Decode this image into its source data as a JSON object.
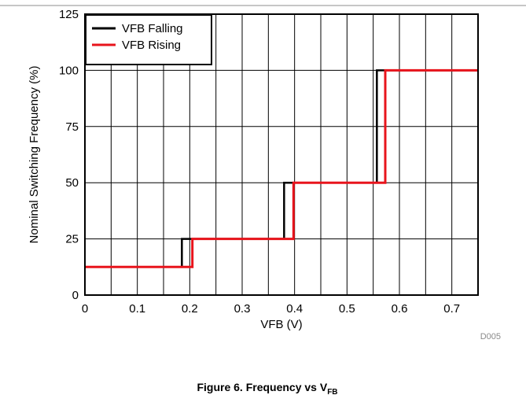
{
  "chart_data": {
    "type": "line",
    "title": "",
    "xlabel": "VFB (V)",
    "ylabel": "Nominal Switching Frequency (%)",
    "xlim": [
      0,
      0.75
    ],
    "ylim": [
      0,
      125
    ],
    "x_ticks": [
      "0",
      "0.1",
      "0.2",
      "0.3",
      "0.4",
      "0.5",
      "0.6",
      "0.7"
    ],
    "x_tick_values": [
      0,
      0.1,
      0.2,
      0.3,
      0.4,
      0.5,
      0.6,
      0.7
    ],
    "y_ticks": [
      "0",
      "25",
      "50",
      "75",
      "100",
      "125"
    ],
    "y_tick_values": [
      0,
      25,
      50,
      75,
      100,
      125
    ],
    "x_minor_gridlines": [
      0.05,
      0.15,
      0.25,
      0.35,
      0.45,
      0.55,
      0.65,
      0.75
    ],
    "grid": true,
    "legend": "top-left",
    "series": [
      {
        "name": "VFB Falling",
        "color": "#000000",
        "step": true,
        "points": [
          [
            0,
            12.5
          ],
          [
            0.185,
            12.5
          ],
          [
            0.185,
            25
          ],
          [
            0.38,
            25
          ],
          [
            0.38,
            50
          ],
          [
            0.557,
            50
          ],
          [
            0.557,
            100
          ],
          [
            0.75,
            100
          ]
        ]
      },
      {
        "name": "VFB Rising",
        "color": "#e8141c",
        "step": true,
        "points": [
          [
            0,
            12.5
          ],
          [
            0.205,
            12.5
          ],
          [
            0.205,
            25
          ],
          [
            0.398,
            25
          ],
          [
            0.398,
            50
          ],
          [
            0.573,
            50
          ],
          [
            0.573,
            100
          ],
          [
            0.75,
            100
          ]
        ]
      }
    ],
    "figure_id": "D005"
  },
  "caption": {
    "text": "Figure 6. Frequency vs V",
    "subscript": "FB"
  }
}
